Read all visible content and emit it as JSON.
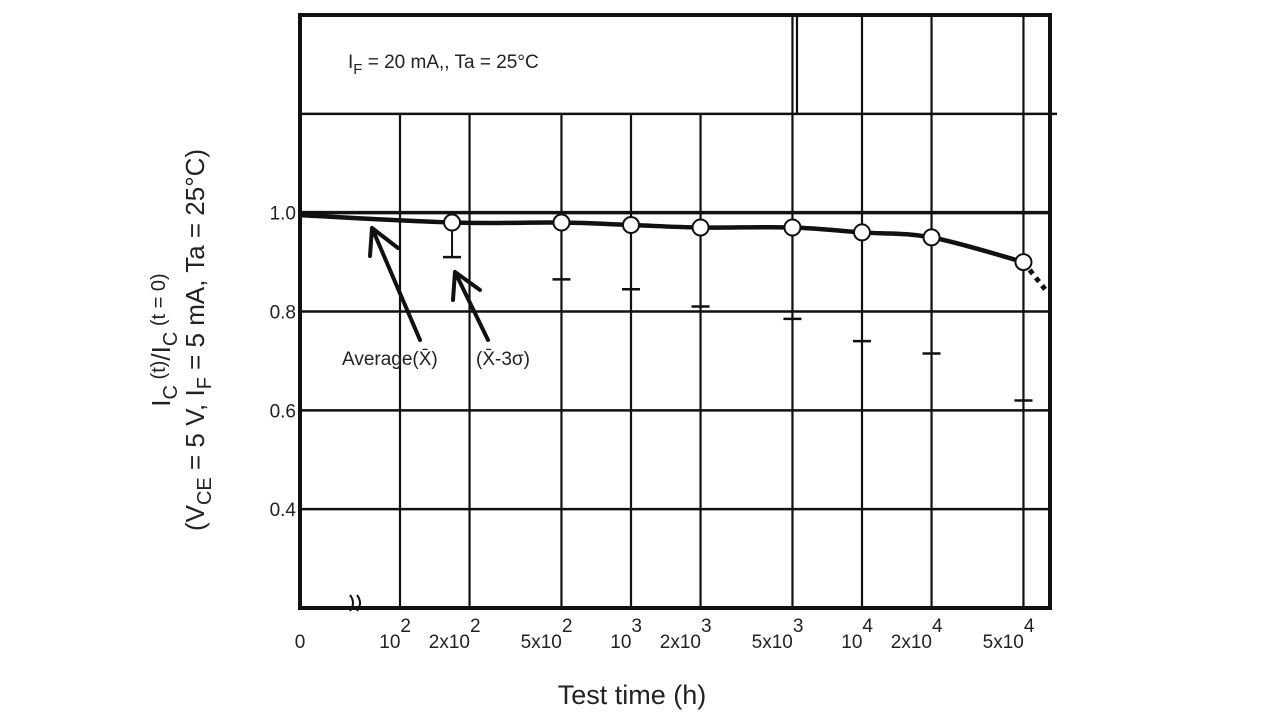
{
  "chart_data": {
    "type": "line",
    "title": "",
    "condition_box": {
      "main": "I",
      "sub": "F",
      "rest": " = 20 mA,, Ta = 25°C"
    },
    "xlabel": "Test time (h)",
    "ylabel_line1": {
      "a": "I",
      "a_sub": "C",
      "b": " (t)",
      "c": "/I",
      "c_sub": "C",
      "d": " (t = 0)"
    },
    "ylabel_line2": {
      "a": "(V",
      "a_sub": "CE",
      "b": " = 5 V, I",
      "b_sub": "F",
      "c": " = 5 mA, Ta = 25°C)"
    },
    "x_scale": "log (with axis break at 0)",
    "x_ticks": [
      {
        "value": 0,
        "base": "0",
        "exp": ""
      },
      {
        "value": 100,
        "base": "10",
        "exp": "2"
      },
      {
        "value": 200,
        "base": "2x10",
        "exp": "2"
      },
      {
        "value": 500,
        "base": "5x10",
        "exp": "2"
      },
      {
        "value": 1000,
        "base": "10",
        "exp": "3"
      },
      {
        "value": 2000,
        "base": "2x10",
        "exp": "3"
      },
      {
        "value": 5000,
        "base": "5x10",
        "exp": "3"
      },
      {
        "value": 10000,
        "base": "10",
        "exp": "4"
      },
      {
        "value": 20000,
        "base": "2x10",
        "exp": "4"
      },
      {
        "value": 50000,
        "base": "5x10",
        "exp": "4"
      }
    ],
    "y_ticks": [
      "0.4",
      "0.6",
      "0.8",
      "1.0"
    ],
    "y_tick_values": [
      0.4,
      0.6,
      0.8,
      1.0
    ],
    "ylim": [
      0.2,
      1.4
    ],
    "grid": true,
    "series": [
      {
        "name": "Average (X̄)",
        "x": [
          168,
          500,
          1000,
          2000,
          5000,
          10000,
          20000,
          50000
        ],
        "values": [
          0.98,
          0.98,
          0.975,
          0.97,
          0.97,
          0.96,
          0.95,
          0.9
        ]
      },
      {
        "name": "X̄-3σ",
        "x": [
          168,
          500,
          1000,
          2000,
          5000,
          10000,
          20000,
          50000
        ],
        "values": [
          0.91,
          0.865,
          0.845,
          0.81,
          0.785,
          0.74,
          0.715,
          0.62
        ]
      }
    ],
    "curve_start_value": 0.995,
    "extrapolation_end": {
      "x": 62000,
      "value": 0.845
    },
    "annotations": {
      "average": "Average(X̄)",
      "minus3sigma": "(X̄-3σ)"
    }
  }
}
